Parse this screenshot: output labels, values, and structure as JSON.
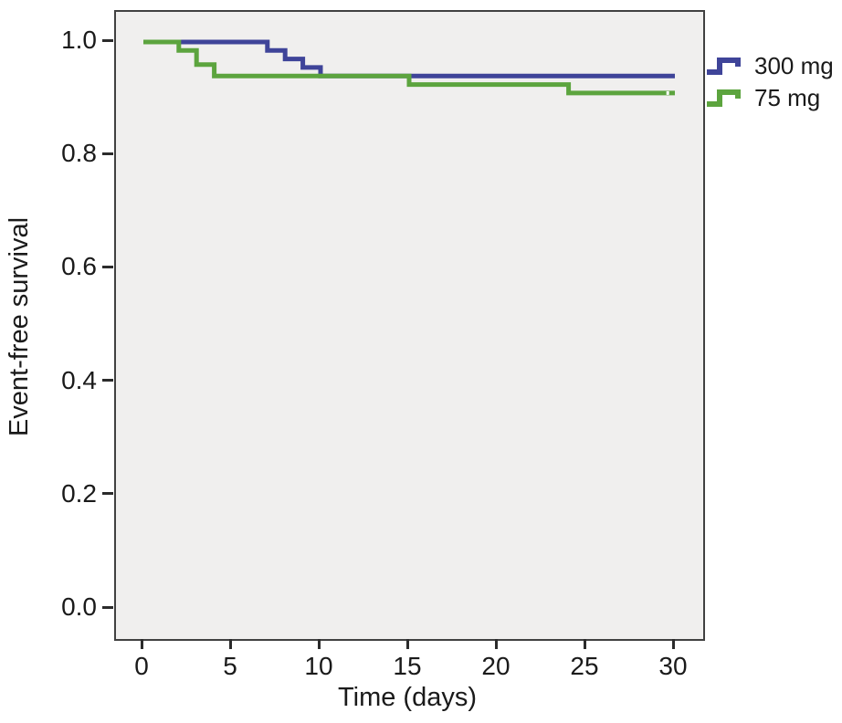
{
  "chart_data": {
    "type": "line",
    "subtype": "kaplan-meier-step-curve",
    "title": "",
    "xlabel": "Time (days)",
    "ylabel": "Event-free survival",
    "xlim": [
      0,
      30
    ],
    "ylim": [
      0.0,
      1.0
    ],
    "xticks": [
      "0",
      "5",
      "10",
      "15",
      "20",
      "25",
      "30"
    ],
    "yticks": [
      "1.0",
      "0.8",
      "0.6",
      "0.4",
      "0.2",
      "0.0"
    ],
    "grid": false,
    "legend_position": "outside-right-top",
    "plot_background": "#f0efee",
    "axis_color": "#414141",
    "series": [
      {
        "name": "300 mg",
        "color": "#3f4499",
        "points": [
          [
            0,
            1.0
          ],
          [
            7,
            1.0
          ],
          [
            7,
            0.985
          ],
          [
            8,
            0.985
          ],
          [
            8,
            0.97
          ],
          [
            9,
            0.97
          ],
          [
            9,
            0.955
          ],
          [
            10,
            0.955
          ],
          [
            10,
            0.94
          ],
          [
            30,
            0.94
          ]
        ]
      },
      {
        "name": "75 mg",
        "color": "#5ca43e",
        "points": [
          [
            0,
            1.0
          ],
          [
            2,
            1.0
          ],
          [
            2,
            0.985
          ],
          [
            3,
            0.985
          ],
          [
            3,
            0.96
          ],
          [
            4,
            0.96
          ],
          [
            4,
            0.94
          ],
          [
            15,
            0.94
          ],
          [
            15,
            0.925
          ],
          [
            24,
            0.925
          ],
          [
            24,
            0.91
          ],
          [
            30,
            0.91
          ]
        ]
      }
    ],
    "censor_marks": [
      {
        "series": "75 mg",
        "day": 29.6,
        "survival": 0.91
      }
    ]
  }
}
